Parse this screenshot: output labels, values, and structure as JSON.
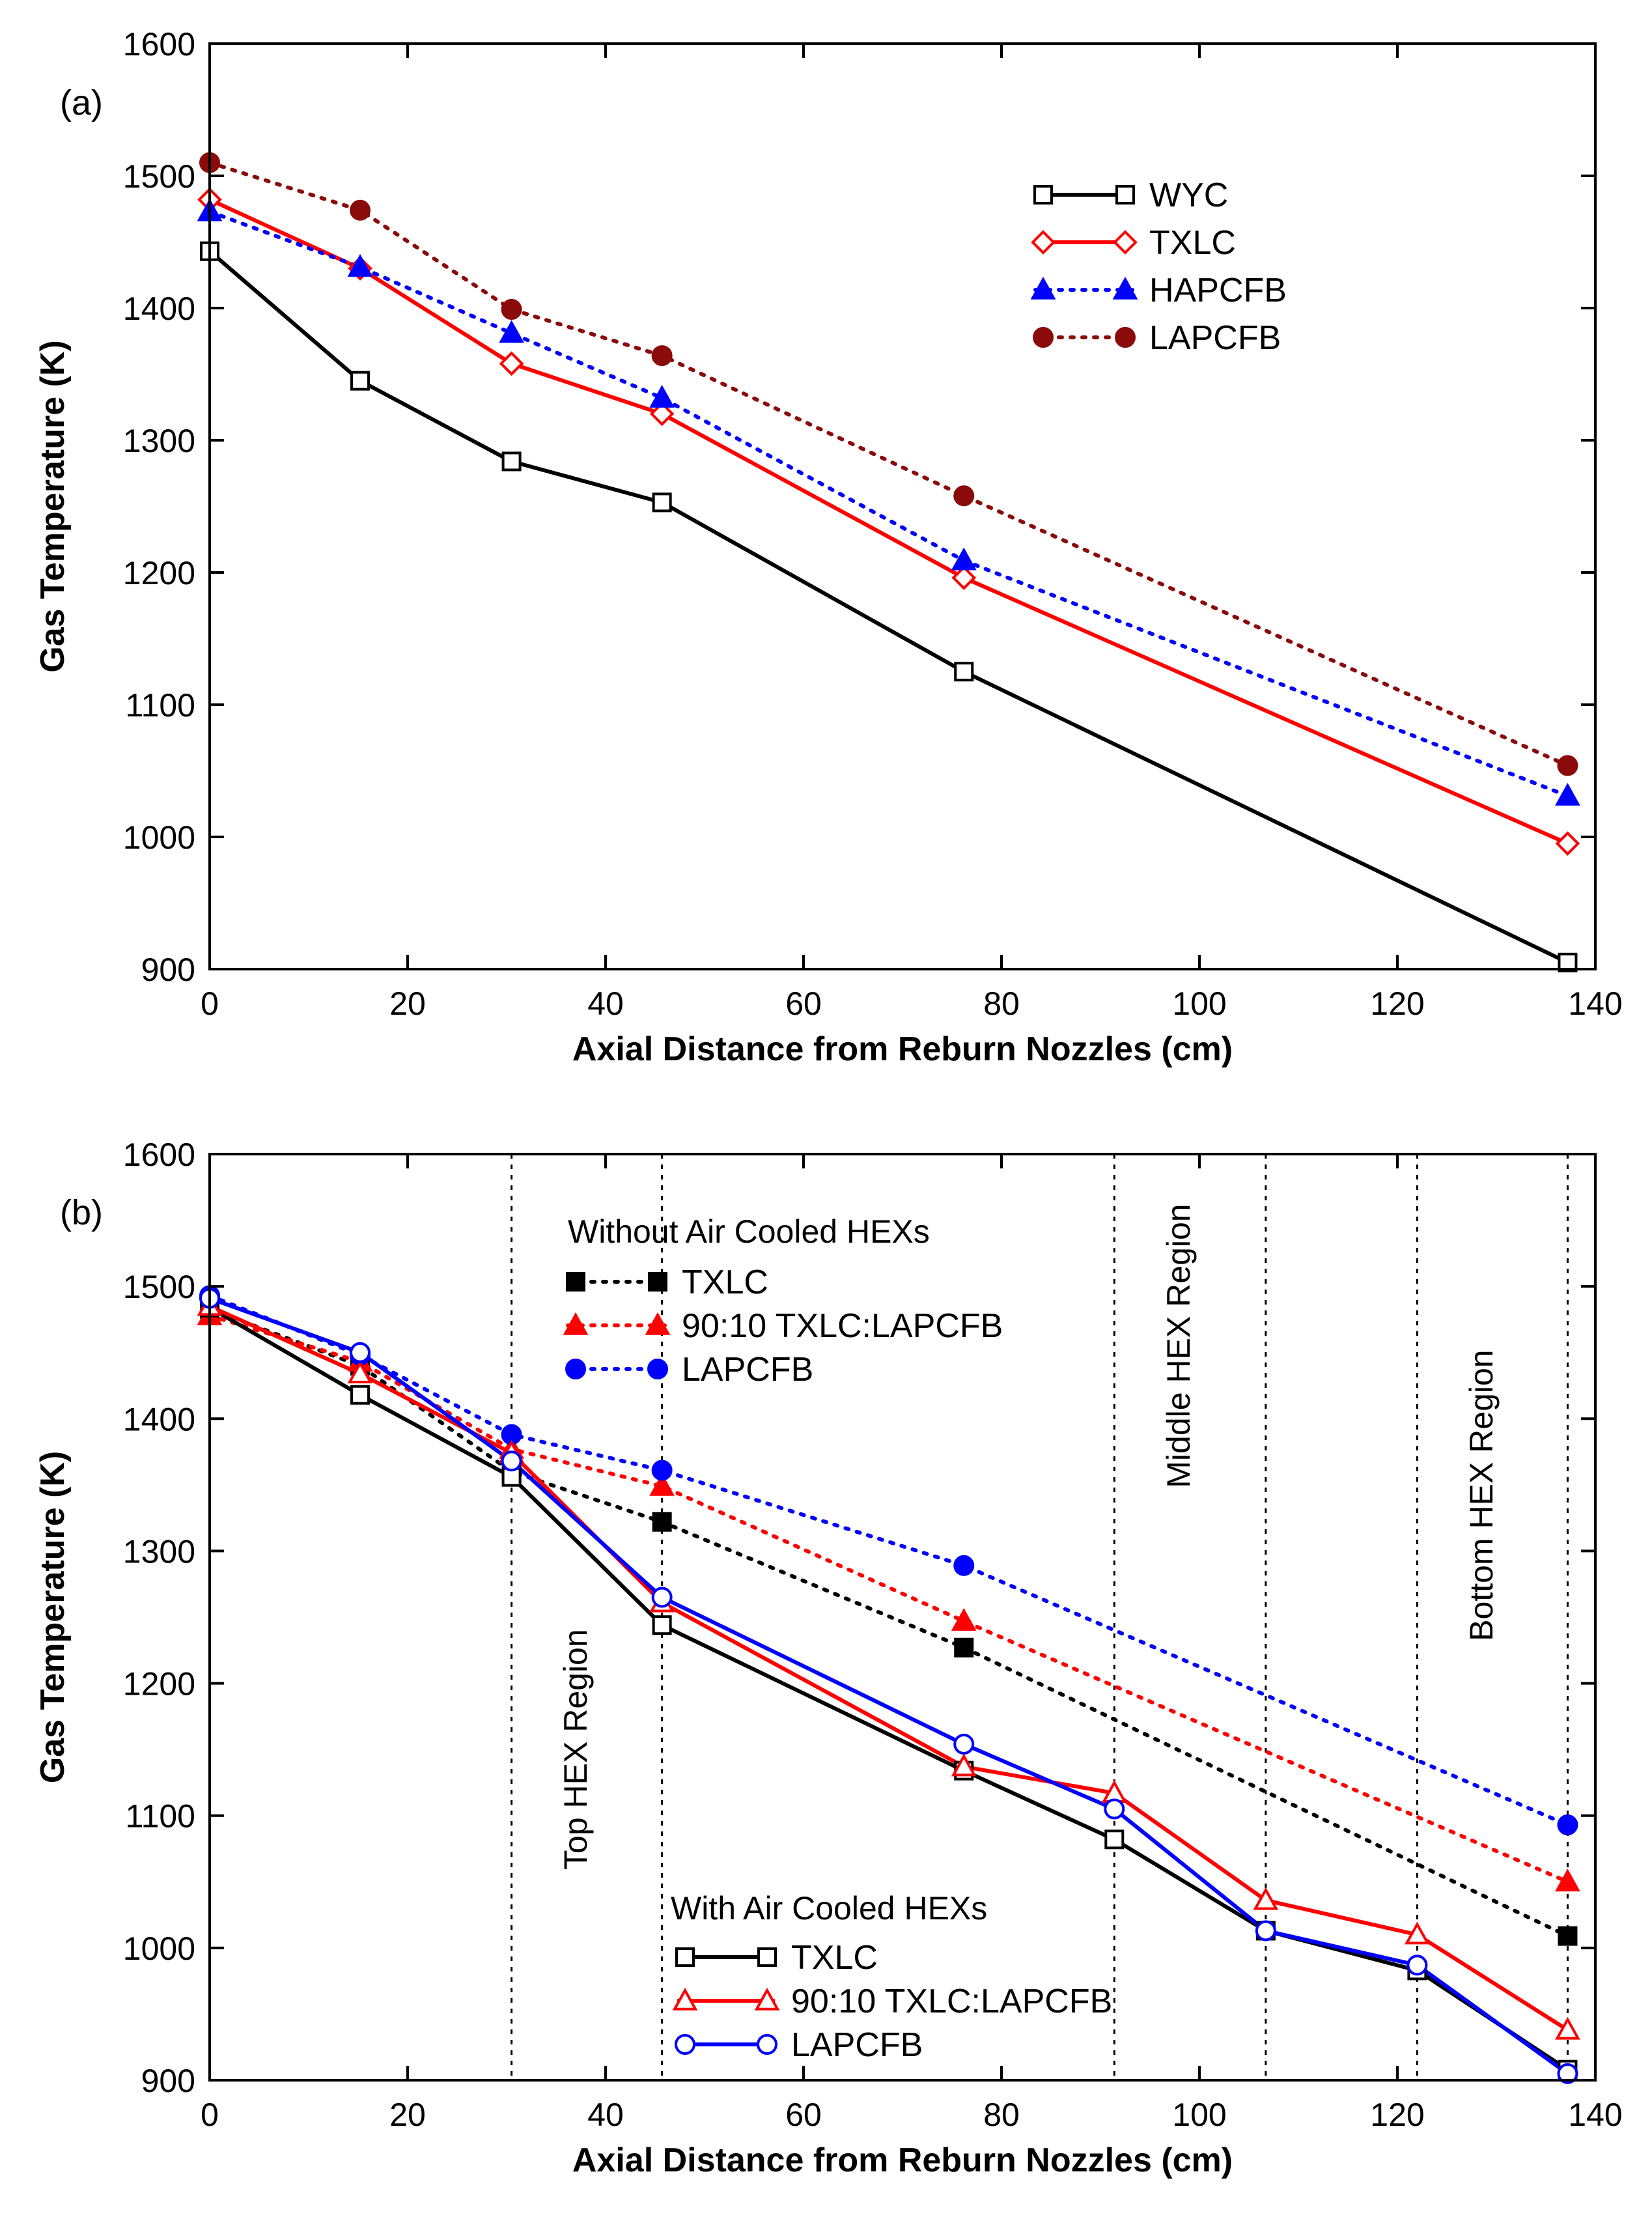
{
  "colors": {
    "black": "#000000",
    "red": "#ff0000",
    "blue": "#0000ff",
    "maroon": "#8b0a0a"
  },
  "chart_data": [
    {
      "type": "line",
      "panel_label": "(a)",
      "xlabel": "Axial Distance from Reburn Nozzles (cm)",
      "ylabel": "Gas Temperature (K)",
      "xlim": [
        0,
        140
      ],
      "ylim": [
        900,
        1600
      ],
      "xticks": [
        0,
        20,
        40,
        60,
        80,
        100,
        120,
        140
      ],
      "yticks": [
        900,
        1000,
        1100,
        1200,
        1300,
        1400,
        1500,
        1600
      ],
      "legend_position": "top-right",
      "series": [
        {
          "name": "WYC",
          "color": "#000000",
          "marker": "square-open",
          "line": "solid",
          "x": [
            0,
            15.2,
            30.5,
            45.7,
            76.2,
            137.2
          ],
          "y": [
            1443,
            1345,
            1284,
            1253,
            1125,
            905
          ]
        },
        {
          "name": "TXLC",
          "color": "#ff0000",
          "marker": "diamond-open",
          "line": "solid",
          "x": [
            0,
            15.2,
            30.5,
            45.7,
            76.2,
            137.2
          ],
          "y": [
            1482,
            1430,
            1358,
            1320,
            1196,
            995
          ]
        },
        {
          "name": "HAPCFB",
          "color": "#0000ff",
          "marker": "triangle-filled",
          "line": "dotted",
          "x": [
            0,
            15.2,
            30.5,
            45.7,
            76.2,
            137.2
          ],
          "y": [
            1473,
            1431,
            1381,
            1332,
            1209,
            1031
          ]
        },
        {
          "name": "LAPCFB",
          "color": "#8b0a0a",
          "marker": "circle-filled",
          "line": "dotted",
          "x": [
            0,
            15.2,
            30.5,
            45.7,
            76.2,
            137.2
          ],
          "y": [
            1510,
            1474,
            1399,
            1364,
            1258,
            1054
          ]
        }
      ]
    },
    {
      "type": "line",
      "panel_label": "(b)",
      "xlabel": "Axial Distance from Reburn Nozzles (cm)",
      "ylabel": "Gas Temperature (K)",
      "xlim": [
        0,
        140
      ],
      "ylim": [
        900,
        1600
      ],
      "xticks": [
        0,
        20,
        40,
        60,
        80,
        100,
        120,
        140
      ],
      "yticks": [
        900,
        1000,
        1100,
        1200,
        1300,
        1400,
        1500,
        1600
      ],
      "vertical_lines_x": [
        30.5,
        45.7,
        91.4,
        106.7,
        122.0,
        137.2
      ],
      "region_labels": [
        {
          "text": "Top HEX Region",
          "x": 38.1,
          "y": 1150
        },
        {
          "text": "Middle HEX Region",
          "x": 99,
          "y": 1455
        },
        {
          "text": "Bottom HEX Region",
          "x": 129.6,
          "y": 1342
        }
      ],
      "legend_groups": [
        {
          "title": "Without Air Cooled HEXs",
          "position": "top-center",
          "entries": [
            "TXLC",
            "90:10 TXLC:LAPCFB",
            "LAPCFB"
          ]
        },
        {
          "title": "With Air Cooled HEXs",
          "position": "bottom-center",
          "entries": [
            "TXLC",
            "90:10 TXLC:LAPCFB",
            "LAPCFB"
          ]
        }
      ],
      "series": [
        {
          "name": "TXLC",
          "group": "Without Air Cooled HEXs",
          "color": "#000000",
          "marker": "square-filled",
          "line": "dotted",
          "x": [
            0,
            15.2,
            30.5,
            45.7,
            76.2,
            137.2
          ],
          "y": [
            1483,
            1440,
            1360,
            1322,
            1227,
            1009
          ]
        },
        {
          "name": "90:10 TXLC:LAPCFB",
          "group": "Without Air Cooled HEXs",
          "color": "#ff0000",
          "marker": "triangle-filled",
          "line": "dotted",
          "x": [
            0,
            15.2,
            30.5,
            45.7,
            76.2,
            137.2
          ],
          "y": [
            1478,
            1443,
            1377,
            1349,
            1247,
            1050
          ]
        },
        {
          "name": "LAPCFB",
          "group": "Without Air Cooled HEXs",
          "color": "#0000ff",
          "marker": "circle-filled",
          "line": "dotted",
          "x": [
            0,
            15.2,
            30.5,
            45.7,
            76.2,
            137.2
          ],
          "y": [
            1493,
            1448,
            1388,
            1361,
            1289,
            1093
          ]
        },
        {
          "name": "TXLC",
          "group": "With Air Cooled HEXs",
          "color": "#000000",
          "marker": "square-open",
          "line": "solid",
          "x": [
            0,
            15.2,
            30.5,
            45.7,
            76.2,
            91.4,
            106.7,
            122.0,
            137.2
          ],
          "y": [
            1484,
            1418,
            1356,
            1244,
            1134,
            1082,
            1013,
            983,
            908
          ]
        },
        {
          "name": "90:10 TXLC:LAPCFB",
          "group": "With Air Cooled HEXs",
          "color": "#ff0000",
          "marker": "triangle-open",
          "line": "solid",
          "x": [
            0,
            15.2,
            30.5,
            45.7,
            76.2,
            91.4,
            106.7,
            122.0,
            137.2
          ],
          "y": [
            1485,
            1434,
            1374,
            1261,
            1137,
            1117,
            1036,
            1010,
            938
          ]
        },
        {
          "name": "LAPCFB",
          "group": "With Air Cooled HEXs",
          "color": "#0000ff",
          "marker": "circle-open",
          "line": "solid",
          "x": [
            0,
            15.2,
            30.5,
            45.7,
            76.2,
            91.4,
            106.7,
            122.0,
            137.2
          ],
          "y": [
            1491,
            1450,
            1368,
            1265,
            1154,
            1105,
            1013,
            987,
            905
          ]
        }
      ]
    }
  ]
}
